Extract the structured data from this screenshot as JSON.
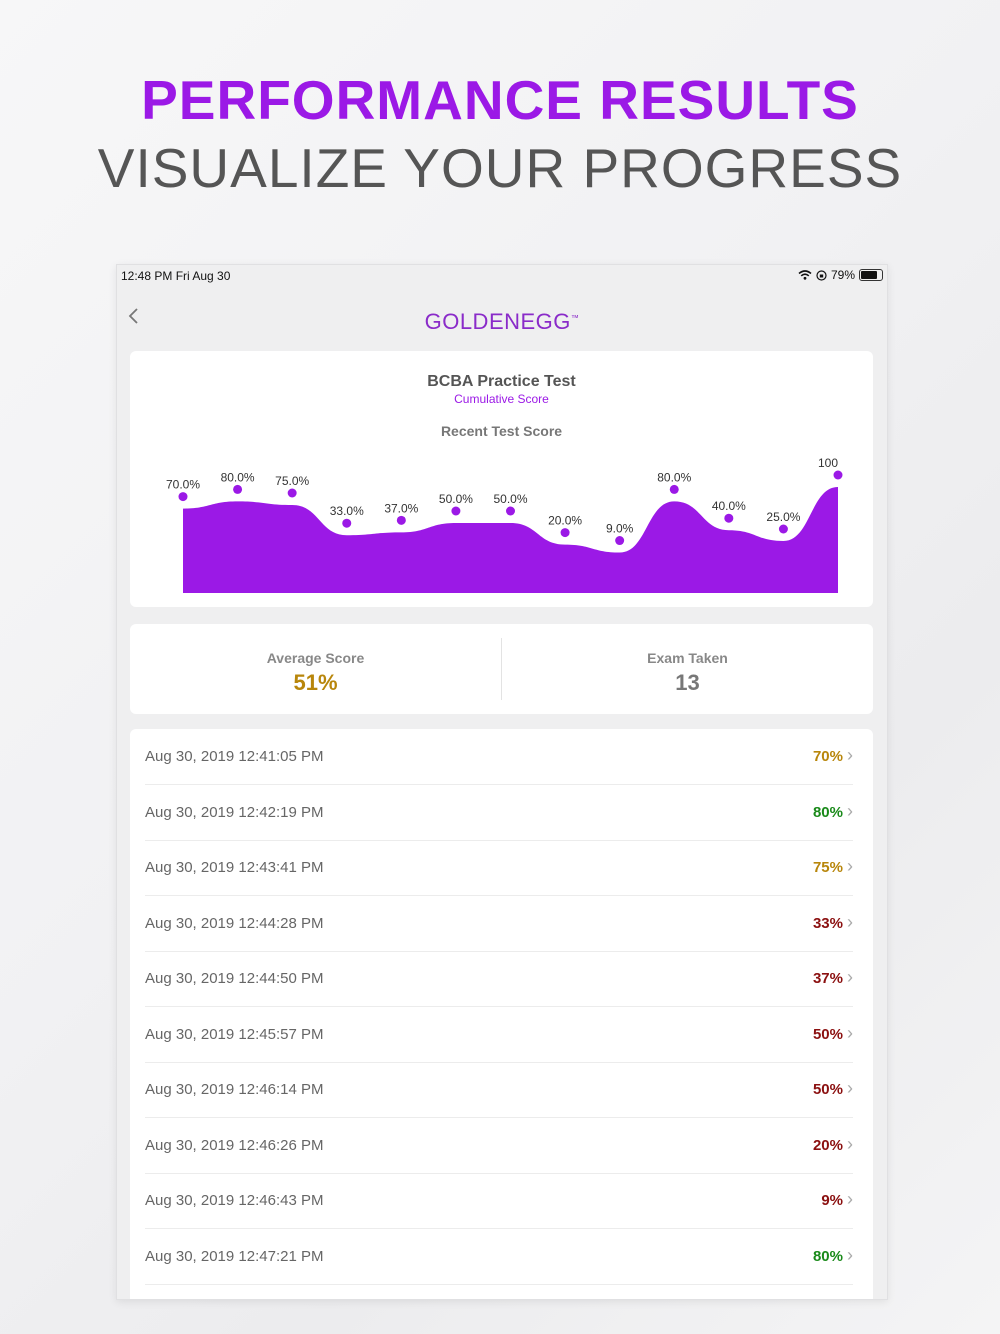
{
  "header": {
    "line1": "PERFORMANCE RESULTS",
    "line2": "VISUALIZE YOUR PROGRESS"
  },
  "status_bar": {
    "time": "12:48 PM   Fri Aug 30",
    "battery": "79%",
    "battery_level": 0.79
  },
  "nav": {
    "logo": "GOLDENEGG",
    "logo_mark": "™"
  },
  "chart": {
    "title": "BCBA Practice Test",
    "subtitle": "Cumulative Score",
    "heading": "Recent Test Score"
  },
  "chart_data": {
    "type": "area",
    "x": [
      1,
      2,
      3,
      4,
      5,
      6,
      7,
      8,
      9,
      10,
      11,
      12,
      13
    ],
    "values": [
      70,
      80,
      75,
      33,
      37,
      50,
      50,
      20,
      9,
      80,
      40,
      25,
      100
    ],
    "labels": [
      "70.0%",
      "80.0%",
      "75.0%",
      "33.0%",
      "37.0%",
      "50.0%",
      "50.0%",
      "20.0%",
      "9.0%",
      "80.0%",
      "40.0%",
      "25.0%",
      "100"
    ],
    "ylim": [
      0,
      100
    ],
    "grid": false,
    "color": "#9b19e6"
  },
  "stats": {
    "average_label": "Average Score",
    "average_value": "51%",
    "average_color": "#b8860b",
    "exams_label": "Exam Taken",
    "exams_value": "13",
    "exams_color": "#777777"
  },
  "results": [
    {
      "date": "Aug 30, 2019 12:41:05 PM",
      "score": "70%",
      "color": "#b8860b"
    },
    {
      "date": "Aug 30, 2019 12:42:19 PM",
      "score": "80%",
      "color": "#1a8a1a"
    },
    {
      "date": "Aug 30, 2019 12:43:41 PM",
      "score": "75%",
      "color": "#b8860b"
    },
    {
      "date": "Aug 30, 2019 12:44:28 PM",
      "score": "33%",
      "color": "#8b1010"
    },
    {
      "date": "Aug 30, 2019 12:44:50 PM",
      "score": "37%",
      "color": "#8b1010"
    },
    {
      "date": "Aug 30, 2019 12:45:57 PM",
      "score": "50%",
      "color": "#8b1010"
    },
    {
      "date": "Aug 30, 2019 12:46:14 PM",
      "score": "50%",
      "color": "#8b1010"
    },
    {
      "date": "Aug 30, 2019 12:46:26 PM",
      "score": "20%",
      "color": "#8b1010"
    },
    {
      "date": "Aug 30, 2019 12:46:43 PM",
      "score": "9%",
      "color": "#8b1010"
    },
    {
      "date": "Aug 30, 2019 12:47:21 PM",
      "score": "80%",
      "color": "#1a8a1a"
    }
  ]
}
